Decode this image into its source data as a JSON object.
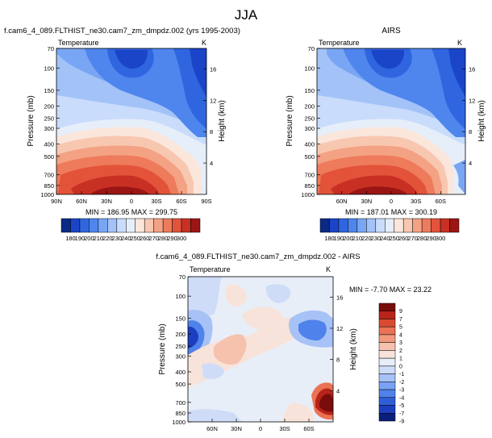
{
  "figure_title": "JJA",
  "colors": {
    "scale_full": [
      "#0b2a86",
      "#1b45c8",
      "#2f66e0",
      "#4f86ee",
      "#79a6f4",
      "#a3c3f8",
      "#c9dcfb",
      "#e6eef9",
      "#fbe6dc",
      "#f8c7b0",
      "#f4a284",
      "#ee7b5b",
      "#e2533a",
      "#c93024",
      "#9b1515"
    ],
    "scale_diff": [
      "#0a1f7a",
      "#1d3ec0",
      "#2f5ed8",
      "#4f82ea",
      "#79a2f2",
      "#a7c2f6",
      "#cfdcf8",
      "#e8eef8",
      "#f8e3da",
      "#f6c2ad",
      "#f29a7f",
      "#ea7355",
      "#d84a32",
      "#b8241a",
      "#7a0c0c"
    ]
  },
  "chart_data": [
    {
      "type": "heatmap",
      "title": "f.cam6_4_089.FLTHIST_ne30.cam7_zm_dmpdz.002 (yrs 1995-2003)",
      "left_label": "Temperature",
      "right_label": "K",
      "ylabel": "Pressure (mb)",
      "y2label": "Height (km)",
      "y_ticks": [
        "70",
        "100",
        "150",
        "200",
        "250",
        "300",
        "400",
        "500",
        "700",
        "850",
        "1000"
      ],
      "y2_ticks": [
        "16",
        "12",
        "8",
        "4"
      ],
      "x_ticks": [
        "90N",
        "60N",
        "30N",
        "0",
        "30S",
        "60S",
        "90S"
      ],
      "stats": "MIN = 186.95   MAX = 299.75",
      "colorbar_labels": [
        "180",
        "190",
        "200",
        "210",
        "220",
        "230",
        "240",
        "250",
        "260",
        "270",
        "280",
        "290",
        "300"
      ],
      "min": 186.95,
      "max": 299.75
    },
    {
      "type": "heatmap",
      "title": "AIRS",
      "left_label": "Temperature",
      "right_label": "K",
      "ylabel": "Pressure (mb)",
      "y2label": "Height (km)",
      "y_ticks": [
        "70",
        "100",
        "150",
        "200",
        "250",
        "300",
        "400",
        "500",
        "700",
        "850",
        "1000"
      ],
      "y2_ticks": [
        "16",
        "12",
        "8",
        "4"
      ],
      "x_ticks": [
        "60N",
        "30N",
        "0",
        "30S",
        "60S"
      ],
      "stats": "MIN = 187.01   MAX = 300.19",
      "colorbar_labels": [
        "180",
        "190",
        "200",
        "210",
        "220",
        "230",
        "240",
        "250",
        "260",
        "270",
        "280",
        "290",
        "300"
      ],
      "min": 187.01,
      "max": 300.19
    },
    {
      "type": "heatmap",
      "title": "f.cam6_4_089.FLTHIST_ne30.cam7_zm_dmpdz.002 - AIRS",
      "left_label": "Temperature",
      "right_label": "K",
      "ylabel": "Pressure (mb)",
      "y2label": "Height (km)",
      "y_ticks": [
        "70",
        "100",
        "150",
        "200",
        "250",
        "300",
        "400",
        "500",
        "700",
        "850",
        "1000"
      ],
      "y2_ticks": [
        "16",
        "12",
        "8",
        "4"
      ],
      "x_ticks": [
        "60N",
        "30N",
        "0",
        "30S",
        "60S"
      ],
      "stats": "MIN = -7.70   MAX = 23.22",
      "colorbar_labels": [
        "9",
        "7",
        "5",
        "4",
        "3",
        "2",
        "1",
        "0",
        "-1",
        "-2",
        "-3",
        "-4",
        "-5",
        "-7",
        "-9"
      ],
      "min": -7.7,
      "max": 23.22
    }
  ]
}
